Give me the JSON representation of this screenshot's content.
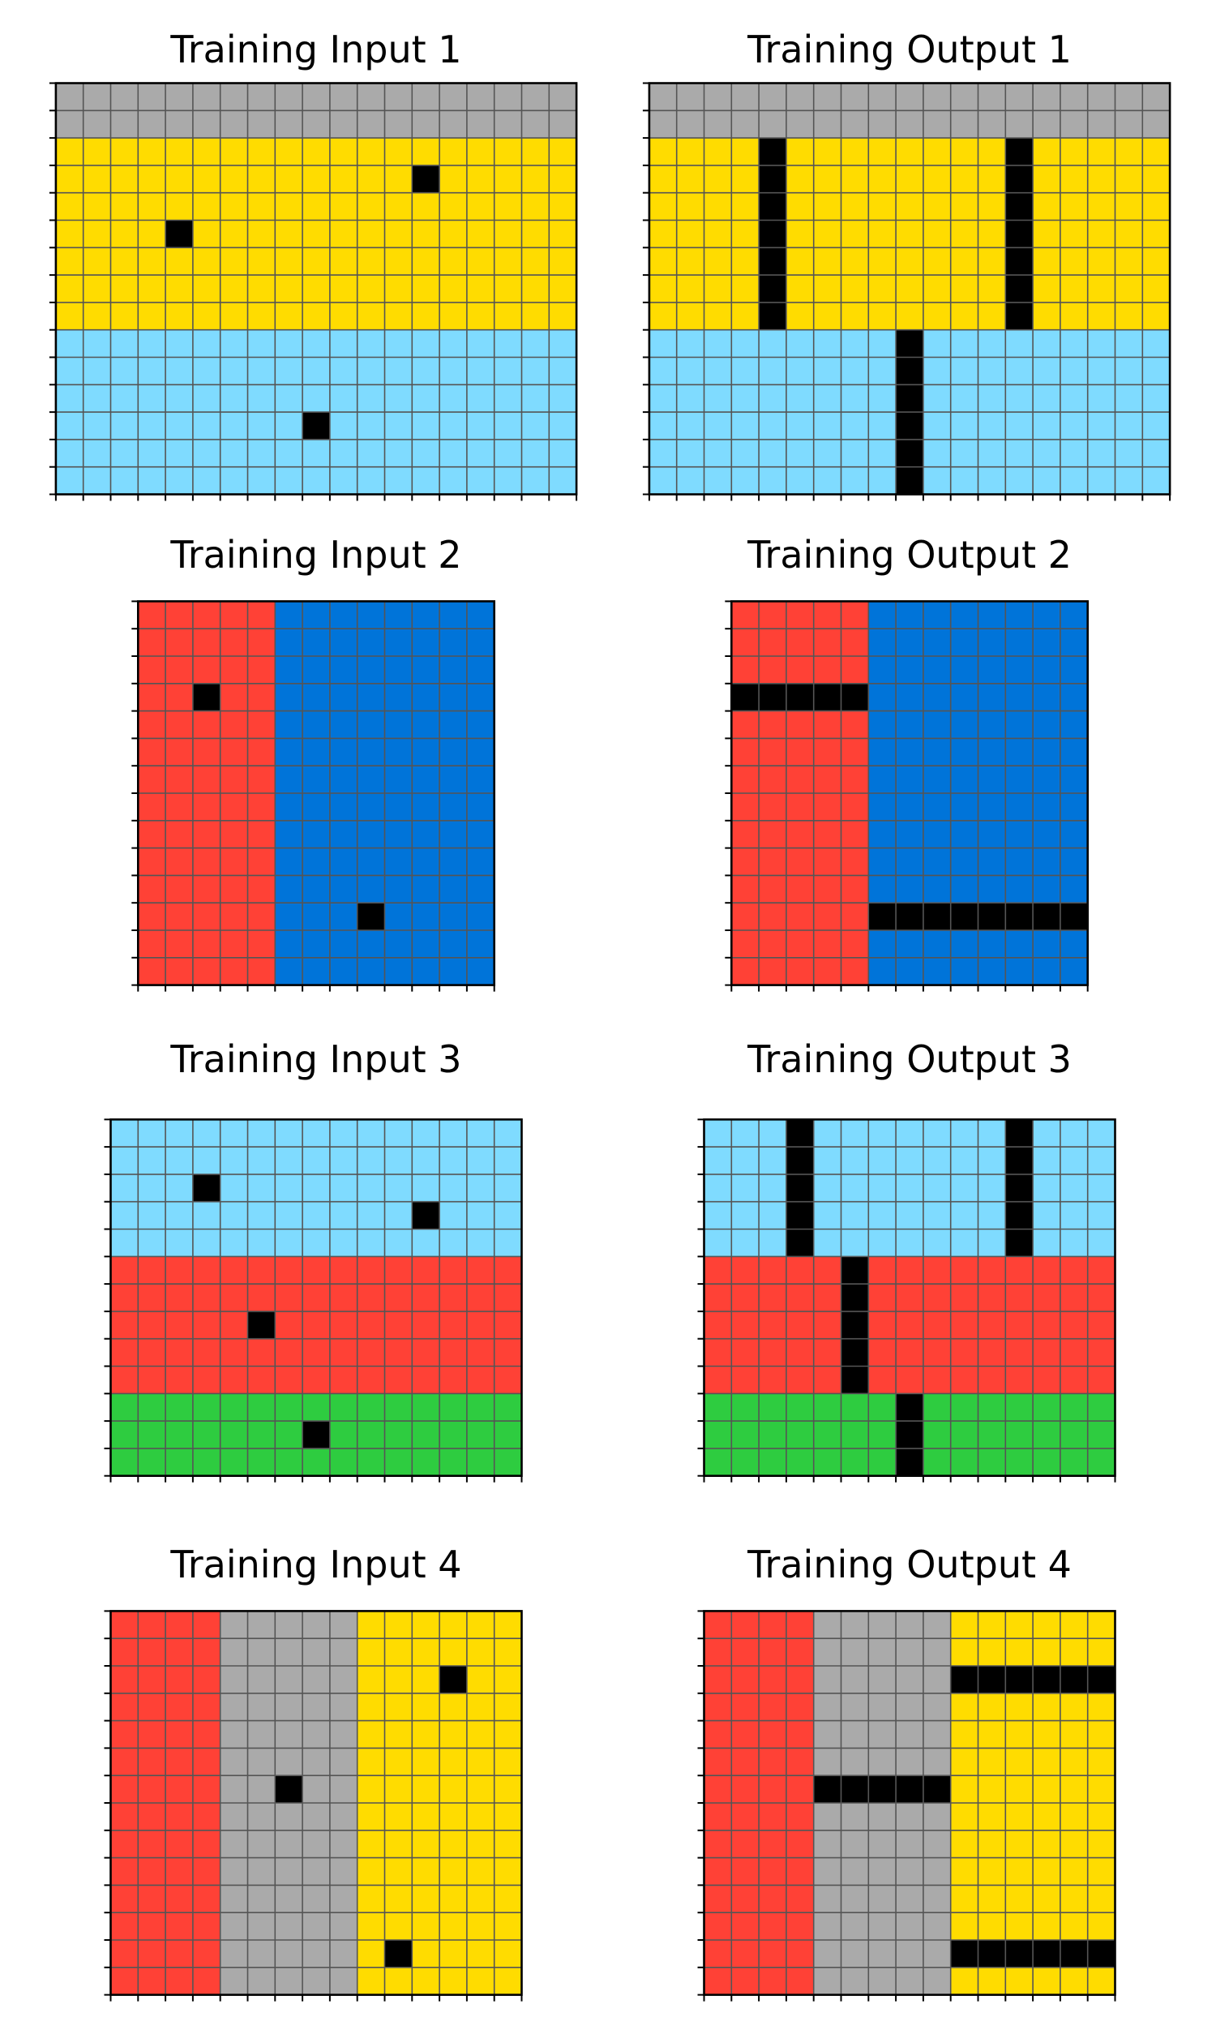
{
  "palette": {
    "0": "#000000",
    "1": "#0074D9",
    "2": "#FF4136",
    "3": "#2ECC40",
    "5": "#AAAAAA",
    "4": "#FFDC00",
    "8": "#7FDBFF"
  },
  "grid_line_color": "#555555",
  "panels": [
    {
      "title": "Training Input 1",
      "rows": 15,
      "cols": 19,
      "bands": {
        "orient": "h",
        "spans": [
          [
            0,
            1,
            "5"
          ],
          [
            2,
            8,
            "4"
          ],
          [
            9,
            14,
            "8"
          ]
        ]
      },
      "cells": [
        [
          3,
          13,
          "0"
        ],
        [
          5,
          4,
          "0"
        ],
        [
          12,
          9,
          "0"
        ]
      ]
    },
    {
      "title": "Training Output 1",
      "rows": 15,
      "cols": 19,
      "bands": {
        "orient": "h",
        "spans": [
          [
            0,
            1,
            "5"
          ],
          [
            2,
            8,
            "4"
          ],
          [
            9,
            14,
            "8"
          ]
        ]
      },
      "lines": [
        {
          "dir": "v",
          "index": 4,
          "from": 2,
          "to": 8,
          "color": "0"
        },
        {
          "dir": "v",
          "index": 13,
          "from": 2,
          "to": 8,
          "color": "0"
        },
        {
          "dir": "v",
          "index": 9,
          "from": 9,
          "to": 14,
          "color": "0"
        }
      ]
    },
    {
      "title": "Training Input 2",
      "rows": 14,
      "cols": 13,
      "bands": {
        "orient": "v",
        "spans": [
          [
            0,
            4,
            "2"
          ],
          [
            5,
            12,
            "1"
          ]
        ]
      },
      "cells": [
        [
          3,
          2,
          "0"
        ],
        [
          11,
          8,
          "0"
        ]
      ]
    },
    {
      "title": "Training Output 2",
      "rows": 14,
      "cols": 13,
      "bands": {
        "orient": "v",
        "spans": [
          [
            0,
            4,
            "2"
          ],
          [
            5,
            12,
            "1"
          ]
        ]
      },
      "lines": [
        {
          "dir": "h",
          "index": 3,
          "from": 0,
          "to": 4,
          "color": "0"
        },
        {
          "dir": "h",
          "index": 11,
          "from": 5,
          "to": 12,
          "color": "0"
        }
      ]
    },
    {
      "title": "Training Input 3",
      "rows": 13,
      "cols": 15,
      "bands": {
        "orient": "h",
        "spans": [
          [
            0,
            4,
            "8"
          ],
          [
            5,
            9,
            "2"
          ],
          [
            10,
            12,
            "3"
          ]
        ]
      },
      "cells": [
        [
          2,
          3,
          "0"
        ],
        [
          3,
          11,
          "0"
        ],
        [
          7,
          5,
          "0"
        ],
        [
          11,
          7,
          "0"
        ]
      ]
    },
    {
      "title": "Training Output 3",
      "rows": 13,
      "cols": 15,
      "bands": {
        "orient": "h",
        "spans": [
          [
            0,
            4,
            "8"
          ],
          [
            5,
            9,
            "2"
          ],
          [
            10,
            12,
            "3"
          ]
        ]
      },
      "lines": [
        {
          "dir": "v",
          "index": 3,
          "from": 0,
          "to": 4,
          "color": "0"
        },
        {
          "dir": "v",
          "index": 11,
          "from": 0,
          "to": 4,
          "color": "0"
        },
        {
          "dir": "v",
          "index": 5,
          "from": 5,
          "to": 9,
          "color": "0"
        },
        {
          "dir": "v",
          "index": 7,
          "from": 10,
          "to": 12,
          "color": "0"
        }
      ]
    },
    {
      "title": "Training Input 4",
      "rows": 14,
      "cols": 15,
      "bands": {
        "orient": "v",
        "spans": [
          [
            0,
            3,
            "2"
          ],
          [
            4,
            8,
            "5"
          ],
          [
            9,
            14,
            "4"
          ]
        ]
      },
      "cells": [
        [
          2,
          12,
          "0"
        ],
        [
          6,
          6,
          "0"
        ],
        [
          12,
          10,
          "0"
        ]
      ]
    },
    {
      "title": "Training Output 4",
      "rows": 14,
      "cols": 15,
      "bands": {
        "orient": "v",
        "spans": [
          [
            0,
            3,
            "2"
          ],
          [
            4,
            8,
            "5"
          ],
          [
            9,
            14,
            "4"
          ]
        ]
      },
      "lines": [
        {
          "dir": "h",
          "index": 2,
          "from": 9,
          "to": 14,
          "color": "0"
        },
        {
          "dir": "h",
          "index": 6,
          "from": 4,
          "to": 8,
          "color": "0"
        },
        {
          "dir": "h",
          "index": 12,
          "from": 9,
          "to": 14,
          "color": "0"
        }
      ]
    }
  ]
}
